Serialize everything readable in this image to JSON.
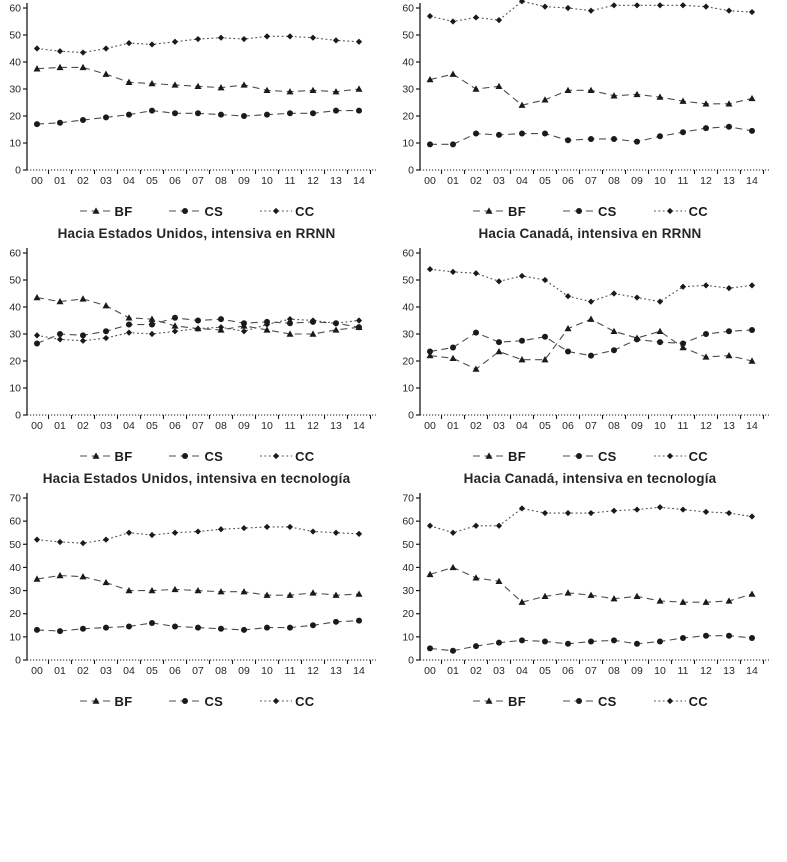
{
  "page": {
    "background": "#ffffff",
    "ink": "#1a1a1a",
    "line_color": "#4d4d4d",
    "text_color": "#262626"
  },
  "legend": {
    "items": [
      {
        "label": "BF",
        "marker": "triangle",
        "linestyle": "dashed"
      },
      {
        "label": "CS",
        "marker": "circle",
        "linestyle": "dashed"
      },
      {
        "label": "CC",
        "marker": "diamond",
        "linestyle": "dotted"
      }
    ]
  },
  "chart_data": [
    {
      "type": "line",
      "title": "",
      "x": [
        "00",
        "01",
        "02",
        "03",
        "04",
        "05",
        "06",
        "07",
        "08",
        "09",
        "10",
        "11",
        "12",
        "13",
        "14"
      ],
      "ylim": [
        0,
        60
      ],
      "yticks": [
        0,
        10,
        20,
        30,
        40,
        50,
        60
      ],
      "legend_position": "bottom",
      "grid": false,
      "series": [
        {
          "name": "BF",
          "marker": "triangle",
          "linestyle": "dashed",
          "values": [
            37.5,
            38,
            38,
            35.5,
            32.5,
            32,
            31.5,
            31,
            30.5,
            31.5,
            29.5,
            29,
            29.5,
            29,
            30
          ]
        },
        {
          "name": "CS",
          "marker": "circle",
          "linestyle": "dashed",
          "values": [
            17,
            17.5,
            18.5,
            19.5,
            20.5,
            22,
            21,
            21,
            20.5,
            20,
            20.5,
            21,
            21,
            22,
            22
          ]
        },
        {
          "name": "CC",
          "marker": "diamond",
          "linestyle": "dotted",
          "values": [
            45,
            44,
            43.5,
            45,
            47,
            46.5,
            47.5,
            48.5,
            49,
            48.5,
            49.5,
            49.5,
            49,
            48,
            47.5
          ]
        }
      ]
    },
    {
      "type": "line",
      "title": "",
      "x": [
        "00",
        "01",
        "02",
        "03",
        "04",
        "05",
        "06",
        "07",
        "08",
        "09",
        "10",
        "11",
        "12",
        "13",
        "14"
      ],
      "ylim": [
        0,
        60
      ],
      "yticks": [
        0,
        10,
        20,
        30,
        40,
        50,
        60
      ],
      "legend_position": "bottom",
      "grid": false,
      "series": [
        {
          "name": "BF",
          "marker": "triangle",
          "linestyle": "dashed",
          "values": [
            33.5,
            35.5,
            30,
            31,
            24,
            26,
            29.5,
            29.5,
            27.5,
            28,
            27,
            25.5,
            24.5,
            24.5,
            26.5
          ]
        },
        {
          "name": "CS",
          "marker": "circle",
          "linestyle": "dashed",
          "values": [
            9.5,
            9.5,
            13.5,
            13,
            13.5,
            13.5,
            11,
            11.5,
            11.5,
            10.5,
            12.5,
            14,
            15.5,
            16,
            14.5
          ]
        },
        {
          "name": "CC",
          "marker": "diamond",
          "linestyle": "dotted",
          "values": [
            57,
            55,
            56.5,
            55.5,
            62.5,
            60.5,
            60,
            59,
            61,
            61,
            61,
            61,
            60.5,
            59,
            58.5
          ]
        }
      ]
    },
    {
      "type": "line",
      "title": "Hacia Estados Unidos, intensiva en RRNN",
      "x": [
        "00",
        "01",
        "02",
        "03",
        "04",
        "05",
        "06",
        "07",
        "08",
        "09",
        "10",
        "11",
        "12",
        "13",
        "14"
      ],
      "ylim": [
        0,
        60
      ],
      "yticks": [
        0,
        10,
        20,
        30,
        40,
        50,
        60
      ],
      "legend_position": "bottom",
      "grid": false,
      "series": [
        {
          "name": "BF",
          "marker": "triangle",
          "linestyle": "dashed",
          "values": [
            43.5,
            42,
            43,
            40.5,
            36,
            35.5,
            33,
            32,
            31.5,
            33,
            31.5,
            30,
            30,
            31.5,
            32.5
          ]
        },
        {
          "name": "CS",
          "marker": "circle",
          "linestyle": "dashed",
          "values": [
            26.5,
            30,
            29.5,
            31,
            33.5,
            33.5,
            36,
            35,
            35.5,
            34,
            34.5,
            34,
            34.5,
            34,
            32.5
          ]
        },
        {
          "name": "CC",
          "marker": "diamond",
          "linestyle": "dotted",
          "values": [
            29.5,
            28,
            27.5,
            28.5,
            30.5,
            30,
            31,
            32,
            32.5,
            31,
            33.5,
            35.5,
            35,
            34,
            35
          ]
        }
      ]
    },
    {
      "type": "line",
      "title": "Hacia Canadá, intensiva en RRNN",
      "x": [
        "00",
        "01",
        "02",
        "03",
        "04",
        "05",
        "06",
        "07",
        "08",
        "09",
        "10",
        "11",
        "12",
        "13",
        "14"
      ],
      "ylim": [
        0,
        60
      ],
      "yticks": [
        0,
        10,
        20,
        30,
        40,
        50,
        60
      ],
      "legend_position": "bottom",
      "grid": false,
      "series": [
        {
          "name": "BF",
          "marker": "triangle",
          "linestyle": "dashed",
          "values": [
            22,
            21,
            17,
            23.5,
            20.5,
            20.5,
            32,
            35.5,
            31,
            28.5,
            31,
            25,
            21.5,
            22,
            20
          ]
        },
        {
          "name": "CS",
          "marker": "circle",
          "linestyle": "dashed",
          "values": [
            23.5,
            25,
            30.5,
            27,
            27.5,
            29,
            23.5,
            22,
            24,
            28,
            27,
            26.5,
            30,
            31,
            31.5
          ]
        },
        {
          "name": "CC",
          "marker": "diamond",
          "linestyle": "dotted",
          "values": [
            54,
            53,
            52.5,
            49.5,
            51.5,
            50,
            44,
            42,
            45,
            43.5,
            42,
            47.5,
            48,
            47,
            48
          ]
        }
      ]
    },
    {
      "type": "line",
      "title": "Hacia Estados Unidos, intensiva en tecnología",
      "x": [
        "00",
        "01",
        "02",
        "03",
        "04",
        "05",
        "06",
        "07",
        "08",
        "09",
        "10",
        "11",
        "12",
        "13",
        "14"
      ],
      "ylim": [
        0,
        70
      ],
      "yticks": [
        0,
        10,
        20,
        30,
        40,
        50,
        60,
        70
      ],
      "legend_position": "bottom",
      "grid": false,
      "series": [
        {
          "name": "BF",
          "marker": "triangle",
          "linestyle": "dashed",
          "values": [
            35,
            36.5,
            36,
            33.5,
            30,
            30,
            30.5,
            30,
            29.5,
            29.5,
            28,
            28,
            29,
            28,
            28.5
          ]
        },
        {
          "name": "CS",
          "marker": "circle",
          "linestyle": "dashed",
          "values": [
            13,
            12.5,
            13.5,
            14,
            14.5,
            16,
            14.5,
            14,
            13.5,
            13,
            14,
            14,
            15,
            16.5,
            17
          ]
        },
        {
          "name": "CC",
          "marker": "diamond",
          "linestyle": "dotted",
          "values": [
            52,
            51,
            50.5,
            52,
            55,
            54,
            55,
            55.5,
            56.5,
            57,
            57.5,
            57.5,
            55.5,
            55,
            54.5
          ]
        }
      ]
    },
    {
      "type": "line",
      "title": "Hacia Canadá, intensiva en tecnología",
      "x": [
        "00",
        "01",
        "02",
        "03",
        "04",
        "05",
        "06",
        "07",
        "08",
        "09",
        "10",
        "11",
        "12",
        "13",
        "14"
      ],
      "ylim": [
        0,
        70
      ],
      "yticks": [
        0,
        10,
        20,
        30,
        40,
        50,
        60,
        70
      ],
      "legend_position": "bottom",
      "grid": false,
      "series": [
        {
          "name": "BF",
          "marker": "triangle",
          "linestyle": "dashed",
          "values": [
            37,
            40,
            35.5,
            34,
            25,
            27.5,
            29,
            28,
            26.5,
            27.5,
            25.5,
            25,
            25,
            25.5,
            28.5
          ]
        },
        {
          "name": "CS",
          "marker": "circle",
          "linestyle": "dashed",
          "values": [
            5,
            4,
            6,
            7.5,
            8.5,
            8,
            7,
            8,
            8.5,
            7,
            8,
            9.5,
            10.5,
            10.5,
            9.5
          ]
        },
        {
          "name": "CC",
          "marker": "diamond",
          "linestyle": "dotted",
          "values": [
            58,
            55,
            58,
            58,
            65.5,
            63.5,
            63.5,
            63.5,
            64.5,
            65,
            66,
            65,
            64,
            63.5,
            62
          ]
        }
      ]
    }
  ]
}
